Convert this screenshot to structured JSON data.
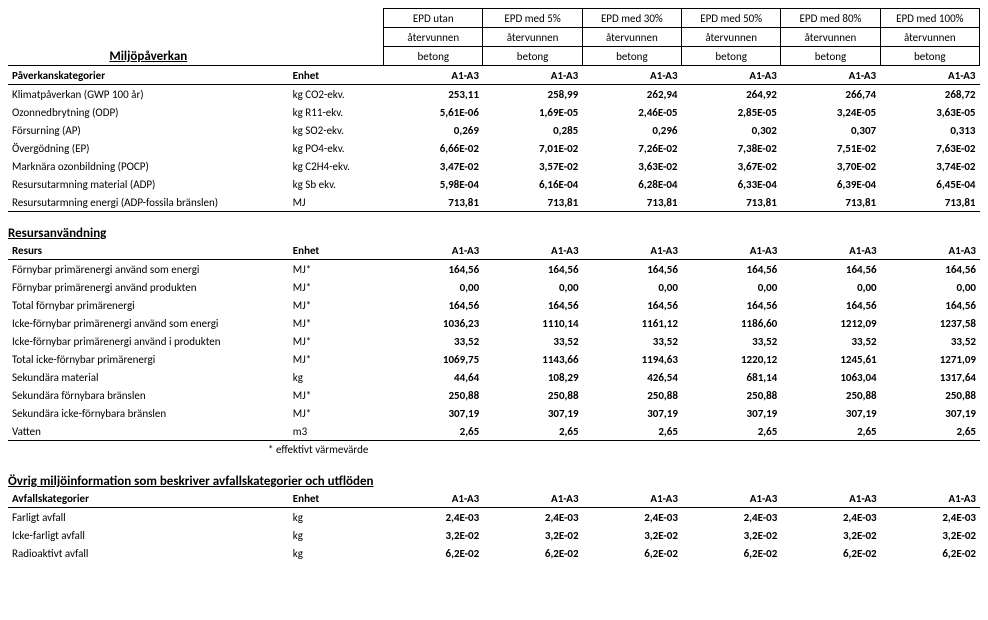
{
  "columns_header": [
    [
      "EPD utan",
      "återvunnen",
      "betong"
    ],
    [
      "EPD med 5%",
      "återvunnen",
      "betong"
    ],
    [
      "EPD med 30%",
      "återvunnen",
      "betong"
    ],
    [
      "EPD med 50%",
      "återvunnen",
      "betong"
    ],
    [
      "EPD med 80%",
      "återvunnen",
      "betong"
    ],
    [
      "EPD med 100%",
      "återvunnen",
      "betong"
    ]
  ],
  "stage_label": "A1-A3",
  "section1": {
    "title": "Miljöpåverkan",
    "cat_label": "Påverkanskategorier",
    "unit_label": "Enhet",
    "rows": [
      {
        "label": "Klimatpåverkan (GWP 100 år)",
        "unit": "kg CO2-ekv.",
        "v": [
          "253,11",
          "258,99",
          "262,94",
          "264,92",
          "266,74",
          "268,72"
        ]
      },
      {
        "label": "Ozonnedbrytning (ODP)",
        "unit": "kg R11-ekv.",
        "v": [
          "5,61E-06",
          "1,69E-05",
          "2,46E-05",
          "2,85E-05",
          "3,24E-05",
          "3,63E-05"
        ]
      },
      {
        "label": "Försurning (AP)",
        "unit": "kg SO2-ekv.",
        "v": [
          "0,269",
          "0,285",
          "0,296",
          "0,302",
          "0,307",
          "0,313"
        ]
      },
      {
        "label": "Övergödning (EP)",
        "unit": "kg PO4-ekv.",
        "v": [
          "6,66E-02",
          "7,01E-02",
          "7,26E-02",
          "7,38E-02",
          "7,51E-02",
          "7,63E-02"
        ]
      },
      {
        "label": "Marknära ozonbildning (POCP)",
        "unit": "kg C2H4-ekv.",
        "v": [
          "3,47E-02",
          "3,57E-02",
          "3,63E-02",
          "3,67E-02",
          "3,70E-02",
          "3,74E-02"
        ]
      },
      {
        "label": "Resursutarmning material (ADP)",
        "unit": "kg Sb ekv.",
        "v": [
          "5,98E-04",
          "6,16E-04",
          "6,28E-04",
          "6,33E-04",
          "6,39E-04",
          "6,45E-04"
        ]
      },
      {
        "label": "Resursutarmning energi (ADP-fossila bränslen)",
        "unit": "MJ",
        "v": [
          "713,81",
          "713,81",
          "713,81",
          "713,81",
          "713,81",
          "713,81"
        ]
      }
    ]
  },
  "section2": {
    "title": "Resursanvändning",
    "cat_label": "Resurs",
    "unit_label": "Enhet",
    "rows": [
      {
        "label": "Förnybar primärenergi använd som energi",
        "unit": "MJ*",
        "v": [
          "164,56",
          "164,56",
          "164,56",
          "164,56",
          "164,56",
          "164,56"
        ]
      },
      {
        "label": "Förnybar primärenergi använd produkten",
        "unit": "MJ*",
        "v": [
          "0,00",
          "0,00",
          "0,00",
          "0,00",
          "0,00",
          "0,00"
        ]
      },
      {
        "label": "Total förnybar primärenergi",
        "unit": "MJ*",
        "v": [
          "164,56",
          "164,56",
          "164,56",
          "164,56",
          "164,56",
          "164,56"
        ]
      },
      {
        "label": "Icke-förnybar primärenergi använd som energi",
        "unit": "MJ*",
        "v": [
          "1036,23",
          "1110,14",
          "1161,12",
          "1186,60",
          "1212,09",
          "1237,58"
        ]
      },
      {
        "label": "Icke-förnybar primärenergi använd i produkten",
        "unit": "MJ*",
        "v": [
          "33,52",
          "33,52",
          "33,52",
          "33,52",
          "33,52",
          "33,52"
        ]
      },
      {
        "label": "Total icke-förnybar primärenergi",
        "unit": "MJ*",
        "v": [
          "1069,75",
          "1143,66",
          "1194,63",
          "1220,12",
          "1245,61",
          "1271,09"
        ]
      },
      {
        "label": "Sekundära material",
        "unit": "kg",
        "v": [
          "44,64",
          "108,29",
          "426,54",
          "681,14",
          "1063,04",
          "1317,64"
        ]
      },
      {
        "label": "Sekundära förnybara bränslen",
        "unit": "MJ*",
        "v": [
          "250,88",
          "250,88",
          "250,88",
          "250,88",
          "250,88",
          "250,88"
        ]
      },
      {
        "label": "Sekundära icke-förnybara bränslen",
        "unit": "MJ*",
        "v": [
          "307,19",
          "307,19",
          "307,19",
          "307,19",
          "307,19",
          "307,19"
        ]
      },
      {
        "label": "Vatten",
        "unit": "m3",
        "v": [
          "2,65",
          "2,65",
          "2,65",
          "2,65",
          "2,65",
          "2,65"
        ]
      }
    ],
    "note": "* effektivt värmevärde"
  },
  "section3": {
    "title": "Övrig miljöinformation som beskriver avfallskategorier och utflöden",
    "cat_label": "Avfallskategorier",
    "unit_label": "Enhet",
    "rows": [
      {
        "label": "Farligt avfall",
        "unit": "kg",
        "v": [
          "2,4E-03",
          "2,4E-03",
          "2,4E-03",
          "2,4E-03",
          "2,4E-03",
          "2,4E-03"
        ]
      },
      {
        "label": "Icke-farligt avfall",
        "unit": "kg",
        "v": [
          "3,2E-02",
          "3,2E-02",
          "3,2E-02",
          "3,2E-02",
          "3,2E-02",
          "3,2E-02"
        ]
      },
      {
        "label": "Radioaktivt avfall",
        "unit": "kg",
        "v": [
          "6,2E-02",
          "6,2E-02",
          "6,2E-02",
          "6,2E-02",
          "6,2E-02",
          "6,2E-02"
        ]
      }
    ]
  }
}
